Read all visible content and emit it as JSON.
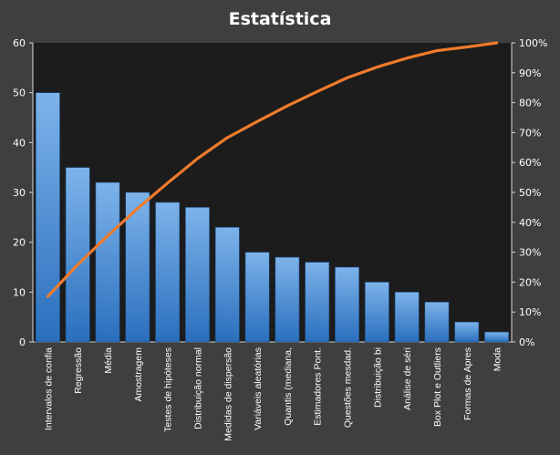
{
  "colors": {
    "background": "#3f3f3f",
    "plot_background": "#1c1c1c",
    "bar_top": "#7db3ea",
    "bar_bottom": "#2a6fbd",
    "bar_edge": "#1a4c85",
    "line": "#f07b2c",
    "text": "#ffffff",
    "frame_line": "#d8d8d8"
  },
  "chart_data": {
    "type": "bar",
    "title": "Estatística",
    "categories": [
      "Intervalos de confia",
      "Regressão",
      "Média",
      "Amostragem",
      "Testes de hipóteses",
      "Distribuição normal",
      "Medidas de dispersão",
      "Variáveis aleatórias",
      "Quantis (mediana,",
      "Estimadores Pont.",
      "Questões mesdad.",
      "Distribuição bi",
      "Análise de séri",
      "Box Plot e Outliers",
      "Formas de Apres",
      "Moda"
    ],
    "series": [
      {
        "type": "bar",
        "axis": "left",
        "values": [
          50,
          35,
          32,
          30,
          28,
          27,
          23,
          18,
          17,
          16,
          15,
          12,
          10,
          8,
          4,
          2
        ]
      },
      {
        "type": "line",
        "axis": "right",
        "values": [
          15.2,
          25.8,
          35.5,
          44.6,
          53.1,
          61.3,
          68.3,
          73.7,
          78.9,
          83.7,
          88.3,
          91.9,
          94.9,
          97.4,
          98.6,
          100.0
        ]
      }
    ],
    "y_left": {
      "ylim": [
        0,
        60
      ],
      "ticks": [
        0,
        10,
        20,
        30,
        40,
        50,
        60
      ],
      "tick_labels": [
        "0",
        "10",
        "20",
        "30",
        "40",
        "50",
        "60"
      ]
    },
    "y_right": {
      "ylim": [
        0,
        100
      ],
      "ticks": [
        0,
        10,
        20,
        30,
        40,
        50,
        60,
        70,
        80,
        90,
        100
      ],
      "tick_labels": [
        "0%",
        "10%",
        "20%",
        "30%",
        "40%",
        "50%",
        "60%",
        "70%",
        "80%",
        "90%",
        "100%"
      ]
    },
    "grid": false,
    "legend": "none"
  }
}
